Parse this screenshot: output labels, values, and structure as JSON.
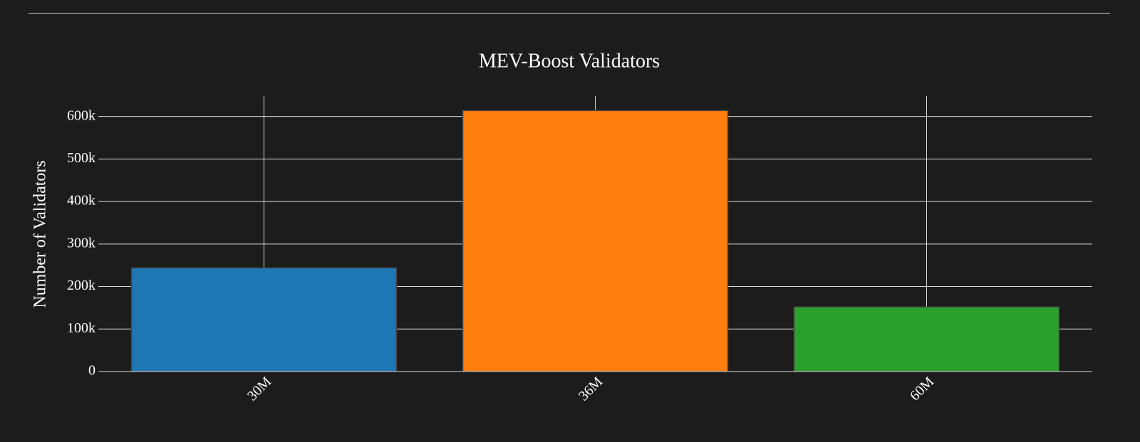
{
  "chart_data": {
    "type": "bar",
    "title": "MEV-Boost Validators",
    "y_label": "Number of Validators",
    "categories": [
      "30M",
      "36M",
      "60M"
    ],
    "values": [
      244000,
      614000,
      152000
    ],
    "colors": [
      "#1f77b4",
      "#ff7f0e",
      "#2ca02c"
    ],
    "ylim": [
      0,
      648000
    ],
    "yticks": [
      0,
      {
        "value": 100000,
        "label": "100k"
      },
      {
        "value": 200000,
        "label": "200k"
      },
      {
        "value": 300000,
        "label": "300k"
      },
      {
        "value": 400000,
        "label": "400k"
      },
      {
        "value": 500000,
        "label": "500k"
      },
      {
        "value": 600000,
        "label": "600k"
      }
    ],
    "grid": true
  }
}
